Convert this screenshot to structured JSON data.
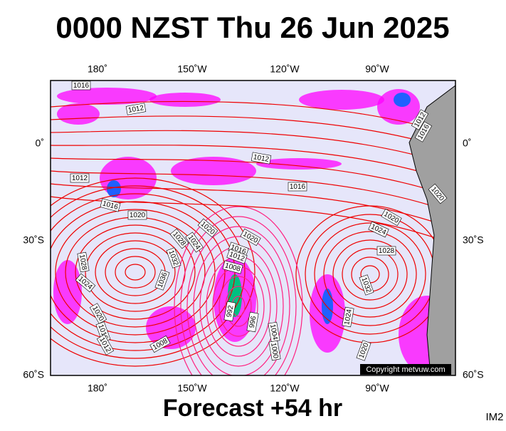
{
  "header": {
    "title": "0000 NZST Thu 26 Jun 2025"
  },
  "map": {
    "lon_labels_top": [
      "180˚",
      "150˚W",
      "120˚W",
      "90˚W"
    ],
    "lon_labels_bottom": [
      "180˚",
      "150˚W",
      "120˚W",
      "90˚W"
    ],
    "lat_labels_left": [
      "0˚",
      "30˚S",
      "60˚S"
    ],
    "lat_labels_right": [
      "0˚",
      "30˚S",
      "60˚S"
    ],
    "isobar_labels": [
      "1016",
      "1012",
      "1012",
      "1012",
      "1016",
      "1016",
      "1020",
      "1020",
      "1020",
      "1024",
      "1020",
      "1028",
      "1024",
      "1016",
      "1028",
      "1012",
      "1008",
      "1028",
      "1036",
      "1032",
      "1024",
      "1032",
      "1020",
      "992",
      "1016",
      "1024",
      "996",
      "1012",
      "1004",
      "1000",
      "1008",
      "1020",
      "1012",
      "1016",
      "1020"
    ],
    "copyright": "Copyright metvuw.com"
  },
  "footer": {
    "forecast": "Forecast +54 hr",
    "image_id": "IM2"
  }
}
